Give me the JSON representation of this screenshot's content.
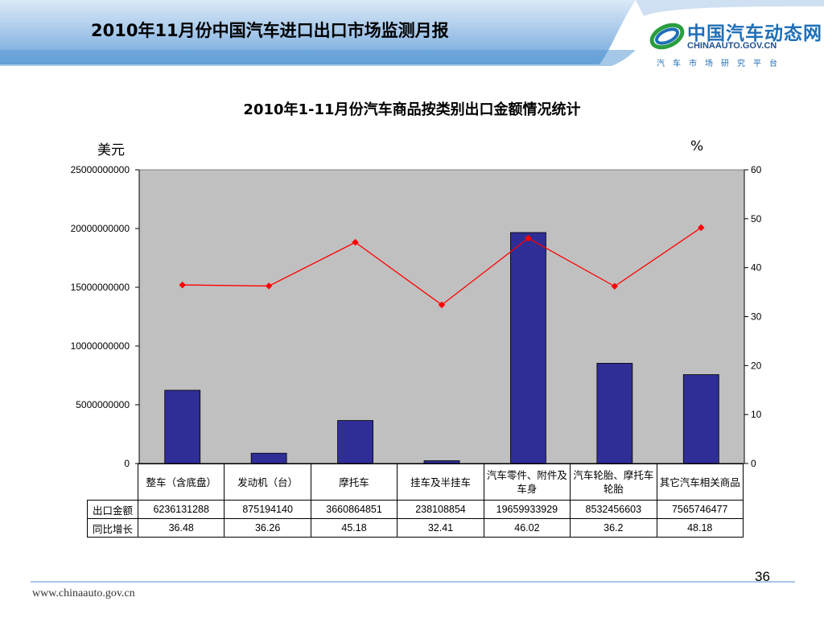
{
  "header": {
    "title": "2010年11月份中国汽车进口出口市场监测月报"
  },
  "logo": {
    "cn": "中国汽车动态网",
    "en": "CHINAAUTO.GOV.CN",
    "sub": "汽车市场研究平台"
  },
  "colors": {
    "bar": "#2e2e96",
    "line": "#ff0000",
    "plot_bg": "#c0c0c0",
    "banner": "#5b9bd5"
  },
  "chart_data": {
    "type": "bar",
    "title": "2010年1-11月份汽车商品按类别出口金额情况统计",
    "ylabel": "美元",
    "y2label": "%",
    "ylim": [
      0,
      25000000000
    ],
    "y2lim": [
      0,
      60
    ],
    "yticks": [
      "25000000000",
      "20000000000",
      "15000000000",
      "10000000000",
      "5000000000",
      "0"
    ],
    "y2ticks": [
      "60",
      "50",
      "40",
      "30",
      "20",
      "10",
      "0"
    ],
    "categories": [
      "整车（含底盘）",
      "发动机（台）",
      "摩托车",
      "挂车及半挂车",
      "汽车零件、附件及车身",
      "汽车轮胎、摩托车轮胎",
      "其它汽车相关商品"
    ],
    "series": [
      {
        "name": "出口金额",
        "kind": "bar",
        "axis": "left",
        "values": [
          6236131288,
          875194140,
          3660864851,
          238108854,
          19659933929,
          8532456603,
          7565746477
        ],
        "labels": [
          "6236131288",
          "875194140",
          "3660864851",
          "238108854",
          "19659933929",
          "8532456603",
          "7565746477"
        ]
      },
      {
        "name": "同比增长",
        "kind": "line",
        "axis": "right",
        "values": [
          36.48,
          36.26,
          45.18,
          32.41,
          46.02,
          36.2,
          48.18
        ],
        "labels": [
          "36.48",
          "36.26",
          "45.18",
          "32.41",
          "46.02",
          "36.2",
          "48.18"
        ]
      }
    ],
    "grid": false,
    "legend": "data-table"
  },
  "footer": {
    "url": "www.chinaauto.gov.cn",
    "page": "36"
  }
}
